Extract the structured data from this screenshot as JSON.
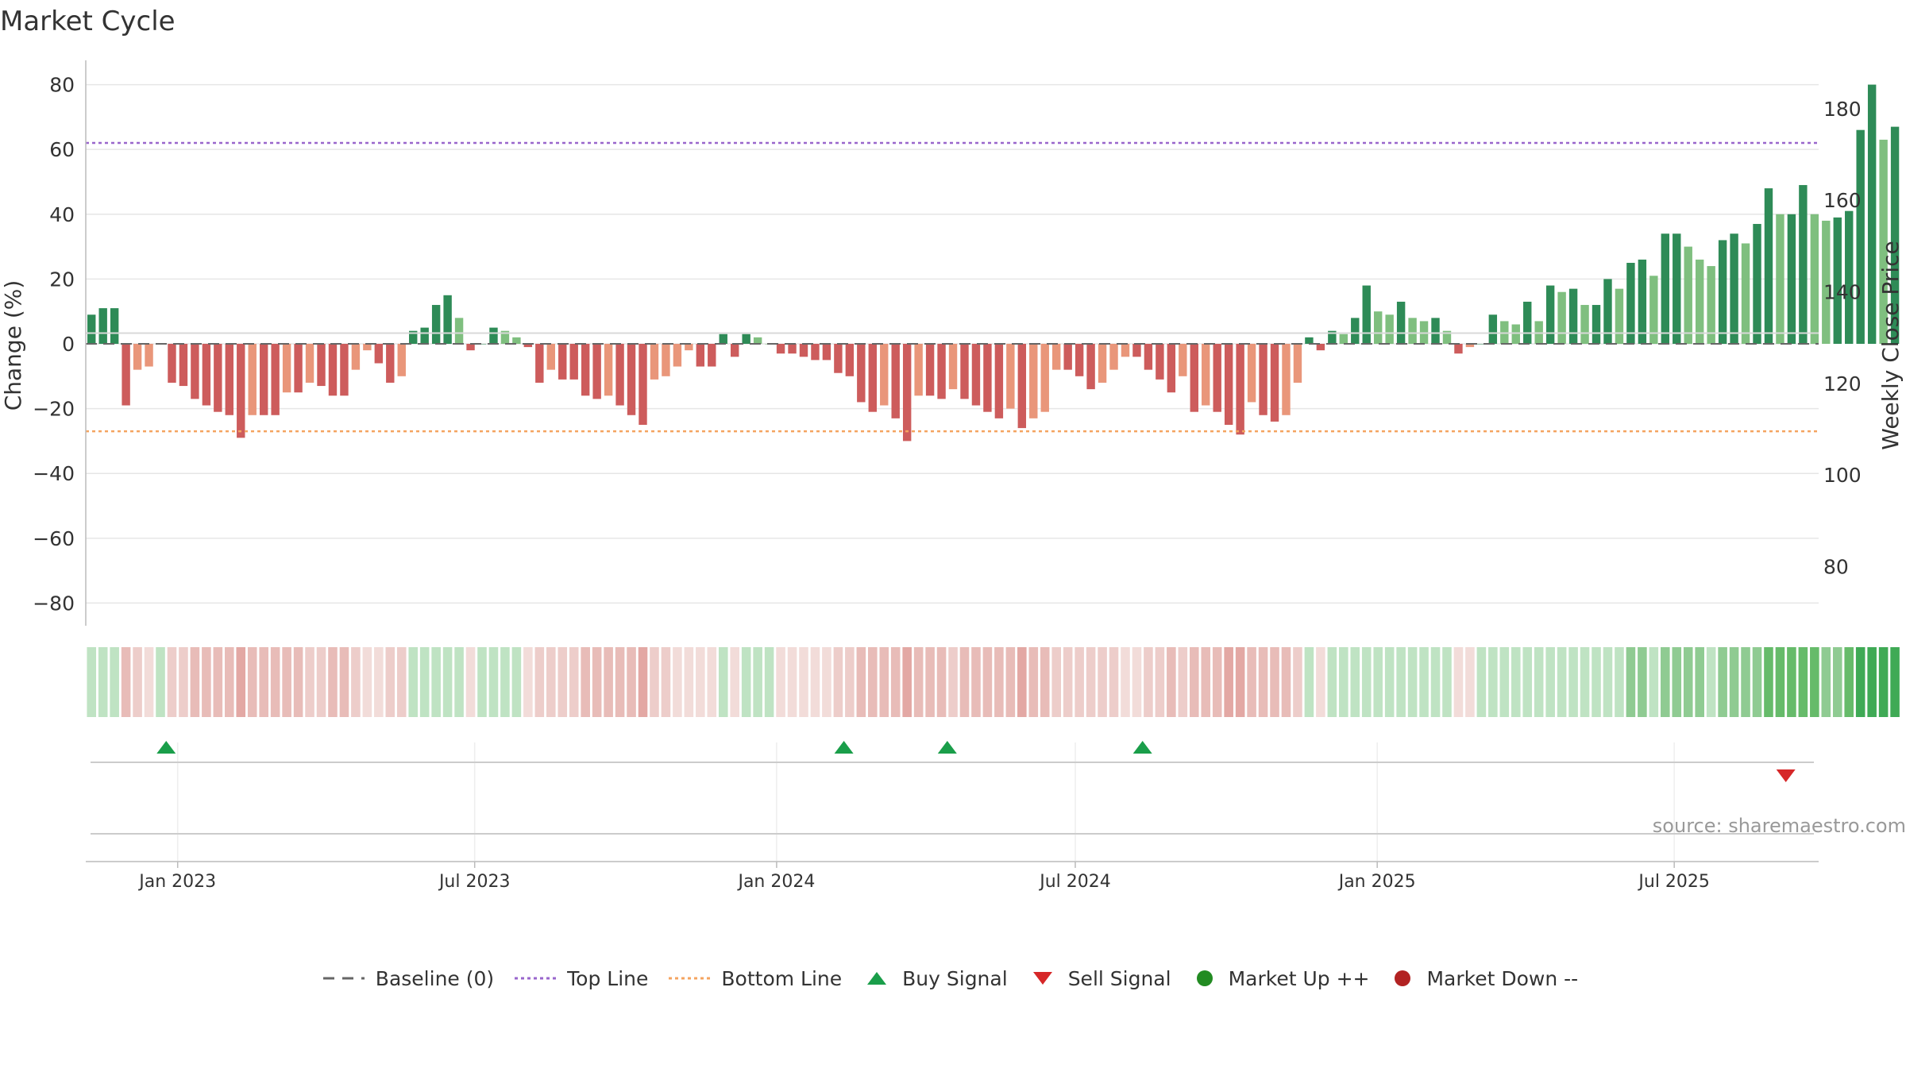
{
  "chart_data": {
    "type": "bar",
    "title": "Market Cycle",
    "ylabel": "Change (%)",
    "y2label": "Weekly Close Price",
    "ylim": [
      -87,
      87
    ],
    "y2lim": [
      67.1,
      190.2
    ],
    "yticks": [
      -80,
      -60,
      -40,
      -20,
      0,
      20,
      40,
      60,
      80
    ],
    "y2ticks": [
      80,
      100,
      120,
      140,
      160,
      180
    ],
    "grid": true,
    "x_start": "2022-11-06",
    "x_end": "2025-09-27",
    "xticks": [
      {
        "date": "2023-01-01",
        "label": "Jan 2023"
      },
      {
        "date": "2023-07-01",
        "label": "Jul 2023"
      },
      {
        "date": "2024-01-01",
        "label": "Jan 2024"
      },
      {
        "date": "2024-07-01",
        "label": "Jul 2024"
      },
      {
        "date": "2025-01-01",
        "label": "Jan 2025"
      },
      {
        "date": "2025-07-01",
        "label": "Jul 2025"
      }
    ],
    "first_week": "2022-11-06",
    "values": [
      9,
      11,
      11,
      -19,
      -8,
      -7,
      0,
      -12,
      -13,
      -17,
      -19,
      -21,
      -22,
      -29,
      -22,
      -22,
      -22,
      -15,
      -15,
      -12,
      -13,
      -16,
      -16,
      -8,
      -2,
      -6,
      -12,
      -10,
      4,
      5,
      12,
      15,
      8,
      -2,
      0,
      5,
      4,
      2,
      -1,
      -12,
      -8,
      -11,
      -11,
      -16,
      -17,
      -16,
      -19,
      -22,
      -25,
      -11,
      -10,
      -7,
      -2,
      -7,
      -7,
      3,
      -4,
      3,
      2,
      0,
      -3,
      -3,
      -4,
      -5,
      -5,
      -9,
      -10,
      -18,
      -21,
      -19,
      -23,
      -30,
      -16,
      -16,
      -17,
      -14,
      -17,
      -19,
      -21,
      -23,
      -20,
      -26,
      -23,
      -21,
      -8,
      -8,
      -10,
      -14,
      -12,
      -8,
      -4,
      -4,
      -8,
      -11,
      -15,
      -10,
      -21,
      -19,
      -21,
      -25,
      -28,
      -18,
      -22,
      -24,
      -22,
      -12,
      2,
      -2,
      4,
      3,
      8,
      18,
      10,
      9,
      13,
      8,
      7,
      8,
      4,
      -3,
      -1,
      0,
      9,
      7,
      6,
      13,
      7,
      18,
      16,
      17,
      12,
      12,
      20,
      17,
      25,
      26,
      21,
      34,
      34,
      30,
      26,
      24,
      32,
      34,
      31,
      37,
      48,
      40,
      40,
      49,
      40,
      38,
      39,
      41,
      66,
      80,
      63,
      67
    ],
    "price_line": {
      "name": "Weekly Close Price",
      "value": 131
    },
    "reference_lines": [
      {
        "name": "Baseline (0)",
        "value": 0
      },
      {
        "name": "Top Line",
        "value": 62
      },
      {
        "name": "Bottom Line",
        "value": -27
      }
    ],
    "buy_signals": [
      "2022-12-25",
      "2024-02-11",
      "2024-04-14",
      "2024-08-11"
    ],
    "sell_signals": [
      "2025-09-07"
    ],
    "legend_position": "bottom-center"
  },
  "legend": {
    "baseline": "Baseline (0)",
    "top_line": "Top Line",
    "bottom_line": "Bottom Line",
    "buy": "Buy Signal",
    "sell": "Sell Signal",
    "market_up": "Market Up ++",
    "market_down": "Market Down --"
  },
  "source": "source: sharemaestro.com",
  "colors": {
    "up_strong": "#2e8b57",
    "up_weak": "#7fbf7f",
    "down_strong": "#cd5c5c",
    "down_weak": "#e9967a",
    "top_line": "#9966cc",
    "bottom_line": "#f4a460",
    "baseline": "#666666",
    "buy": "#1a9e4a",
    "sell": "#d62728",
    "market_up": "#228b22",
    "market_down": "#b22222"
  }
}
